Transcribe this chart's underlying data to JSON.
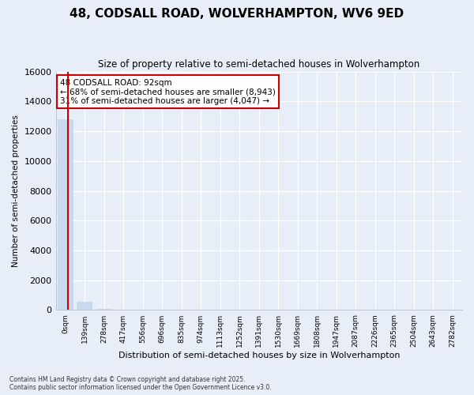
{
  "title": "48, CODSALL ROAD, WOLVERHAMPTON, WV6 9ED",
  "subtitle": "Size of property relative to semi-detached houses in Wolverhampton",
  "xlabel": "Distribution of semi-detached houses by size in Wolverhampton",
  "ylabel": "Number of semi-detached properties",
  "bar_color": "#c8daf0",
  "highlight_color": "#cc0000",
  "background_color": "#e8eef7",
  "annotation_text": "48 CODSALL ROAD: 92sqm\n← 68% of semi-detached houses are smaller (8,943)\n31% of semi-detached houses are larger (4,047) →",
  "property_size_sqm": 92,
  "footer": "Contains HM Land Registry data © Crown copyright and database right 2025.\nContains public sector information licensed under the Open Government Licence v3.0.",
  "categories": [
    "0sqm",
    "139sqm",
    "278sqm",
    "417sqm",
    "556sqm",
    "696sqm",
    "835sqm",
    "974sqm",
    "1113sqm",
    "1252sqm",
    "1391sqm",
    "1530sqm",
    "1669sqm",
    "1808sqm",
    "1947sqm",
    "2087sqm",
    "2226sqm",
    "2365sqm",
    "2504sqm",
    "2643sqm",
    "2782sqm"
  ],
  "values": [
    12800,
    550,
    70,
    25,
    10,
    5,
    3,
    2,
    1,
    1,
    1,
    1,
    1,
    1,
    1,
    1,
    1,
    1,
    1,
    1,
    1
  ],
  "ylim": [
    0,
    16000
  ],
  "yticks": [
    0,
    2000,
    4000,
    6000,
    8000,
    10000,
    12000,
    14000,
    16000
  ],
  "grid_color": "#d0d8e8",
  "spine_color": "#c0c8d8"
}
